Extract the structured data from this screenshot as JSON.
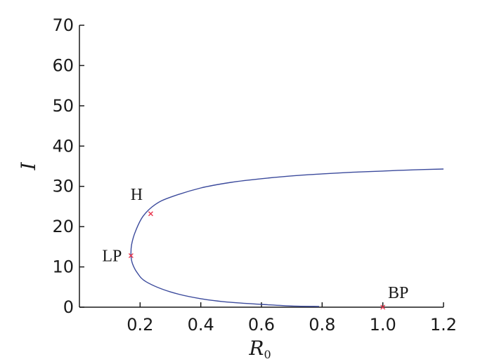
{
  "chart_data": {
    "type": "line",
    "title": "",
    "xlabel": "R",
    "xlabel_subscript": "0",
    "ylabel": "I",
    "xlim": [
      0,
      1.2
    ],
    "ylim": [
      0,
      70
    ],
    "x_ticks": [
      0.2,
      0.4,
      0.6,
      0.8,
      1.0,
      1.2
    ],
    "x_tick_labels": [
      "0.2",
      "0.4",
      "0.6",
      "0.8",
      "1.0",
      "1.2"
    ],
    "y_ticks": [
      0,
      10,
      20,
      30,
      40,
      50,
      60,
      70
    ],
    "y_tick_labels": [
      "0",
      "10",
      "20",
      "30",
      "40",
      "50",
      "60",
      "70"
    ],
    "grid": false,
    "colors": {
      "curve": "#3b4a9c",
      "marker": "#e8334a",
      "axis": "#1a1a1a"
    },
    "series": [
      {
        "x": [
          0.79,
          0.7,
          0.6,
          0.5,
          0.4,
          0.3,
          0.22,
          0.19,
          0.175,
          0.17,
          0.172,
          0.185,
          0.21,
          0.25,
          0.3,
          0.4,
          0.5,
          0.6,
          0.7,
          0.8,
          0.9,
          1.0,
          1.1,
          1.2
        ],
        "y": [
          0.2,
          0.3,
          0.7,
          1.2,
          2.1,
          3.8,
          6.3,
          8.6,
          10.8,
          12.8,
          15.5,
          18.9,
          22.6,
          25.5,
          27.3,
          29.6,
          31.0,
          31.9,
          32.6,
          33.1,
          33.5,
          33.8,
          34.1,
          34.3
        ]
      }
    ],
    "special_points": [
      {
        "label": "H",
        "x": 0.235,
        "y": 23.2
      },
      {
        "label": "LP",
        "x": 0.17,
        "y": 12.8
      },
      {
        "label": "BP",
        "x": 1.0,
        "y": 0
      }
    ]
  }
}
